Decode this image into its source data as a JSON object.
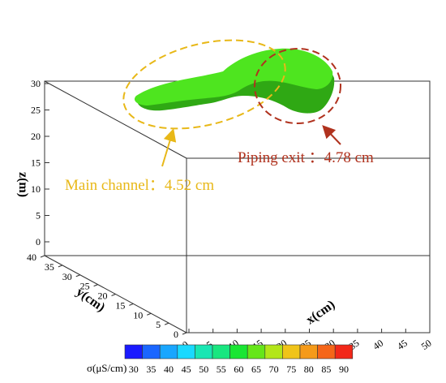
{
  "axes": {
    "z_label": "z(m)",
    "y_label": "y(cm)",
    "x_label": "x(cm)",
    "z_ticks": [
      "0",
      "5",
      "10",
      "15",
      "20",
      "25",
      "30"
    ],
    "y_ticks": [
      "0",
      "5",
      "10",
      "15",
      "20",
      "25",
      "30",
      "35",
      "40"
    ],
    "x_ticks": [
      "0",
      "5",
      "10",
      "15",
      "20",
      "25",
      "30",
      "35",
      "40",
      "45",
      "50"
    ]
  },
  "annotations": {
    "main_channel": "Main channel：4.52 cm",
    "piping_exit": "Piping exit ：4.78 cm"
  },
  "colorbar": {
    "label": "σ(μS/cm)",
    "ticks": [
      "30",
      "35",
      "40",
      "45",
      "50",
      "55",
      "60",
      "65",
      "70",
      "75",
      "80",
      "85",
      "90"
    ],
    "colors": [
      "#1a1aff",
      "#1a66ff",
      "#19a6ff",
      "#19d9ff",
      "#19e6b3",
      "#19e680",
      "#19e633",
      "#66e619",
      "#b3e619",
      "#f0c419",
      "#f59a19",
      "#f56619",
      "#f22819"
    ]
  },
  "colors": {
    "surface": "#4ee51f",
    "surface_dark": "#2fa814",
    "main_channel_ellipse": "#e8b818",
    "piping_exit_ellipse": "#b0321e"
  }
}
